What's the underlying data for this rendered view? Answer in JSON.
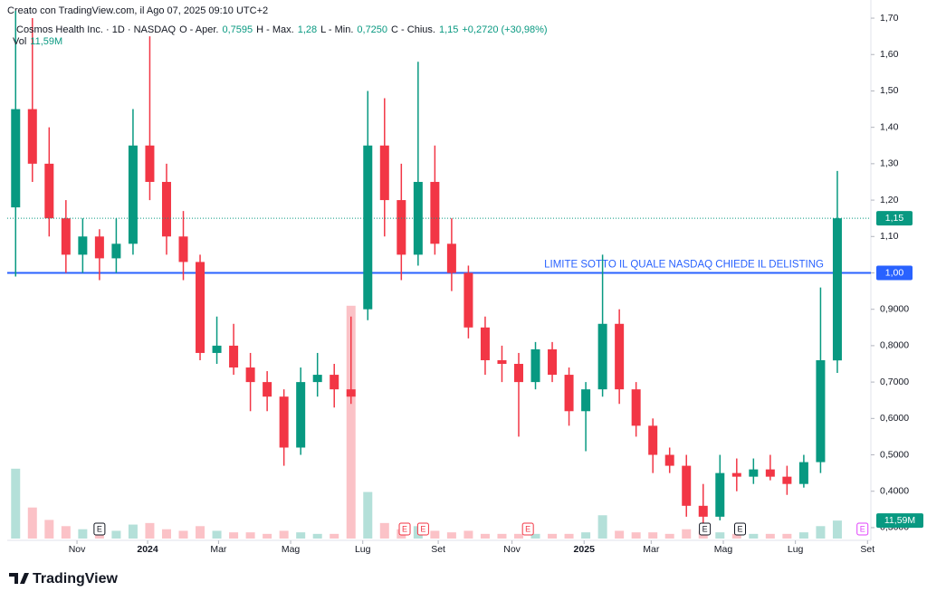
{
  "chart_data": {
    "type": "candlestick",
    "title": "Creato con TradingView.com, il Ago 07, 2025 09:10 UTC+2",
    "subtitle": "Cosmos Health Inc. · 1D · NASDAQ",
    "ohlc_names": [
      "O - Aper.",
      "H - Max.",
      "L - Min.",
      "C - Chius."
    ],
    "change": "+0,2720 (+30,98%)",
    "volume_name": "Vol",
    "brand": "TradingView",
    "up_color": "#089981",
    "down_color": "#f23645",
    "x": [
      0.5,
      1.5,
      2.5,
      3.5,
      4.5,
      5.5,
      6.5,
      7.5,
      8.5,
      9.5,
      10.5,
      11.5,
      12.5,
      13.5,
      14.5,
      15.5,
      16.5,
      17.5,
      18.5,
      19.5,
      20.5,
      21.5,
      22.5,
      23.5,
      24.5,
      25.5,
      26.5,
      27.5,
      28.5,
      29.5,
      30.5,
      31.5,
      32.5,
      33.5,
      34.5,
      35.5,
      36.5,
      37.5,
      38.5,
      39.5,
      40.5,
      41.5,
      42.5,
      43.5,
      44.5,
      45.5,
      46.5,
      47.5,
      48.5,
      49.5
    ],
    "open": [
      1.18,
      1.45,
      1.3,
      1.15,
      1.05,
      1.1,
      1.04,
      1.08,
      1.35,
      1.25,
      1.1,
      1.03,
      0.78,
      0.8,
      0.74,
      0.7,
      0.66,
      0.52,
      0.7,
      0.72,
      0.68,
      0.9,
      1.35,
      1.2,
      1.05,
      1.25,
      1.08,
      1.0,
      0.85,
      0.76,
      0.75,
      0.7,
      0.79,
      0.72,
      0.62,
      0.68,
      0.86,
      0.68,
      0.58,
      0.5,
      0.47,
      0.36,
      0.33,
      0.45,
      0.44,
      0.46,
      0.44,
      0.42,
      0.48,
      0.7595
    ],
    "high": [
      1.72,
      1.7,
      1.4,
      1.2,
      1.15,
      1.12,
      1.15,
      1.45,
      1.65,
      1.3,
      1.17,
      1.05,
      0.88,
      0.86,
      0.78,
      0.73,
      0.68,
      0.74,
      0.78,
      0.75,
      0.88,
      1.5,
      1.48,
      1.3,
      1.58,
      1.35,
      1.15,
      1.02,
      0.88,
      0.8,
      0.78,
      0.81,
      0.81,
      0.74,
      0.7,
      1.05,
      0.9,
      0.7,
      0.6,
      0.52,
      0.5,
      0.42,
      0.5,
      0.49,
      0.49,
      0.5,
      0.47,
      0.5,
      0.96,
      1.28
    ],
    "low": [
      0.99,
      1.25,
      1.1,
      1.0,
      1.0,
      0.98,
      1.0,
      1.05,
      1.2,
      1.05,
      0.98,
      0.76,
      0.75,
      0.72,
      0.62,
      0.62,
      0.47,
      0.5,
      0.66,
      0.63,
      0.64,
      0.87,
      1.1,
      0.98,
      1.02,
      1.05,
      0.95,
      0.82,
      0.72,
      0.7,
      0.55,
      0.68,
      0.7,
      0.58,
      0.51,
      0.66,
      0.64,
      0.55,
      0.45,
      0.45,
      0.33,
      0.3,
      0.32,
      0.4,
      0.42,
      0.43,
      0.39,
      0.41,
      0.45,
      0.725
    ],
    "close": [
      1.45,
      1.3,
      1.15,
      1.05,
      1.1,
      1.04,
      1.08,
      1.35,
      1.25,
      1.1,
      1.03,
      0.78,
      0.8,
      0.74,
      0.7,
      0.66,
      0.52,
      0.7,
      0.72,
      0.68,
      0.66,
      1.35,
      1.2,
      1.05,
      1.25,
      1.08,
      1.0,
      0.85,
      0.76,
      0.75,
      0.7,
      0.79,
      0.72,
      0.62,
      0.68,
      0.86,
      0.68,
      0.58,
      0.5,
      0.47,
      0.36,
      0.33,
      0.45,
      0.44,
      0.46,
      0.44,
      0.42,
      0.48,
      0.76,
      1.15
    ],
    "last_labels": {
      "open": "0,7595",
      "high": "1,28",
      "low": "0,7250",
      "close": "1,15"
    },
    "volume": [
      45000000,
      20000000,
      12000000,
      8000000,
      6000000,
      5000000,
      5000000,
      9000000,
      10000000,
      6000000,
      5000000,
      8000000,
      5000000,
      4000000,
      4000000,
      3000000,
      5000000,
      4000000,
      3000000,
      3000000,
      150000000,
      30000000,
      10000000,
      6000000,
      8000000,
      5000000,
      4000000,
      5000000,
      3000000,
      3000000,
      3000000,
      3000000,
      3000000,
      3000000,
      4000000,
      15000000,
      5000000,
      4000000,
      4000000,
      3000000,
      6000000,
      5000000,
      4000000,
      3000000,
      3000000,
      3000000,
      3000000,
      4000000,
      8000000,
      11590000
    ],
    "volume_label": "11,59M",
    "y2lim": [
      0,
      340000000
    ],
    "xlim": [
      0,
      51.5
    ],
    "xticks": [
      {
        "value": 4.16,
        "label": "Nov"
      },
      {
        "value": 8.37,
        "label": "2024"
      },
      {
        "value": 12.6,
        "label": "Mar"
      },
      {
        "value": 16.9,
        "label": "Mag"
      },
      {
        "value": 21.2,
        "label": "Lug"
      },
      {
        "value": 25.7,
        "label": "Set"
      },
      {
        "value": 30.1,
        "label": "Nov"
      },
      {
        "value": 34.4,
        "label": "2025"
      },
      {
        "value": 38.4,
        "label": "Mar"
      },
      {
        "value": 42.7,
        "label": "Mag"
      },
      {
        "value": 47.0,
        "label": "Lug"
      },
      {
        "value": 51.3,
        "label": "Set"
      }
    ],
    "ylim": [
      0.27,
      1.72
    ],
    "yticks": [
      {
        "value": 0.3,
        "label": "0,3000"
      },
      {
        "value": 0.4,
        "label": "0,4000"
      },
      {
        "value": 0.5,
        "label": "0,5000"
      },
      {
        "value": 0.6,
        "label": "0,6000"
      },
      {
        "value": 0.7,
        "label": "0,7000"
      },
      {
        "value": 0.8,
        "label": "0,8000"
      },
      {
        "value": 0.9,
        "label": "0,9000"
      },
      {
        "value": 1.0,
        "label": "1,00"
      },
      {
        "value": 1.1,
        "label": "1,10"
      },
      {
        "value": 1.2,
        "label": "1,20"
      },
      {
        "value": 1.3,
        "label": "1,30"
      },
      {
        "value": 1.4,
        "label": "1,40"
      },
      {
        "value": 1.5,
        "label": "1,50"
      },
      {
        "value": 1.6,
        "label": "1,60"
      },
      {
        "value": 1.7,
        "label": "1,70"
      }
    ],
    "hline": {
      "value": 1.0,
      "label": "1,00",
      "text": "LIMITE SOTTO IL QUALE NASDAQ CHIEDE IL DELISTING",
      "color": "#2962ff"
    },
    "events": [
      {
        "x": 5.5,
        "label": "E",
        "color": "#131722"
      },
      {
        "x": 23.7,
        "label": "E",
        "color": "#f23645"
      },
      {
        "x": 24.8,
        "label": "E",
        "color": "#f23645"
      },
      {
        "x": 31.05,
        "label": "E",
        "color": "#f23645"
      },
      {
        "x": 41.6,
        "label": "E",
        "color": "#131722"
      },
      {
        "x": 43.7,
        "label": "E",
        "color": "#131722"
      },
      {
        "x": 51.0,
        "label": "E",
        "color": "#e040fb"
      }
    ]
  }
}
